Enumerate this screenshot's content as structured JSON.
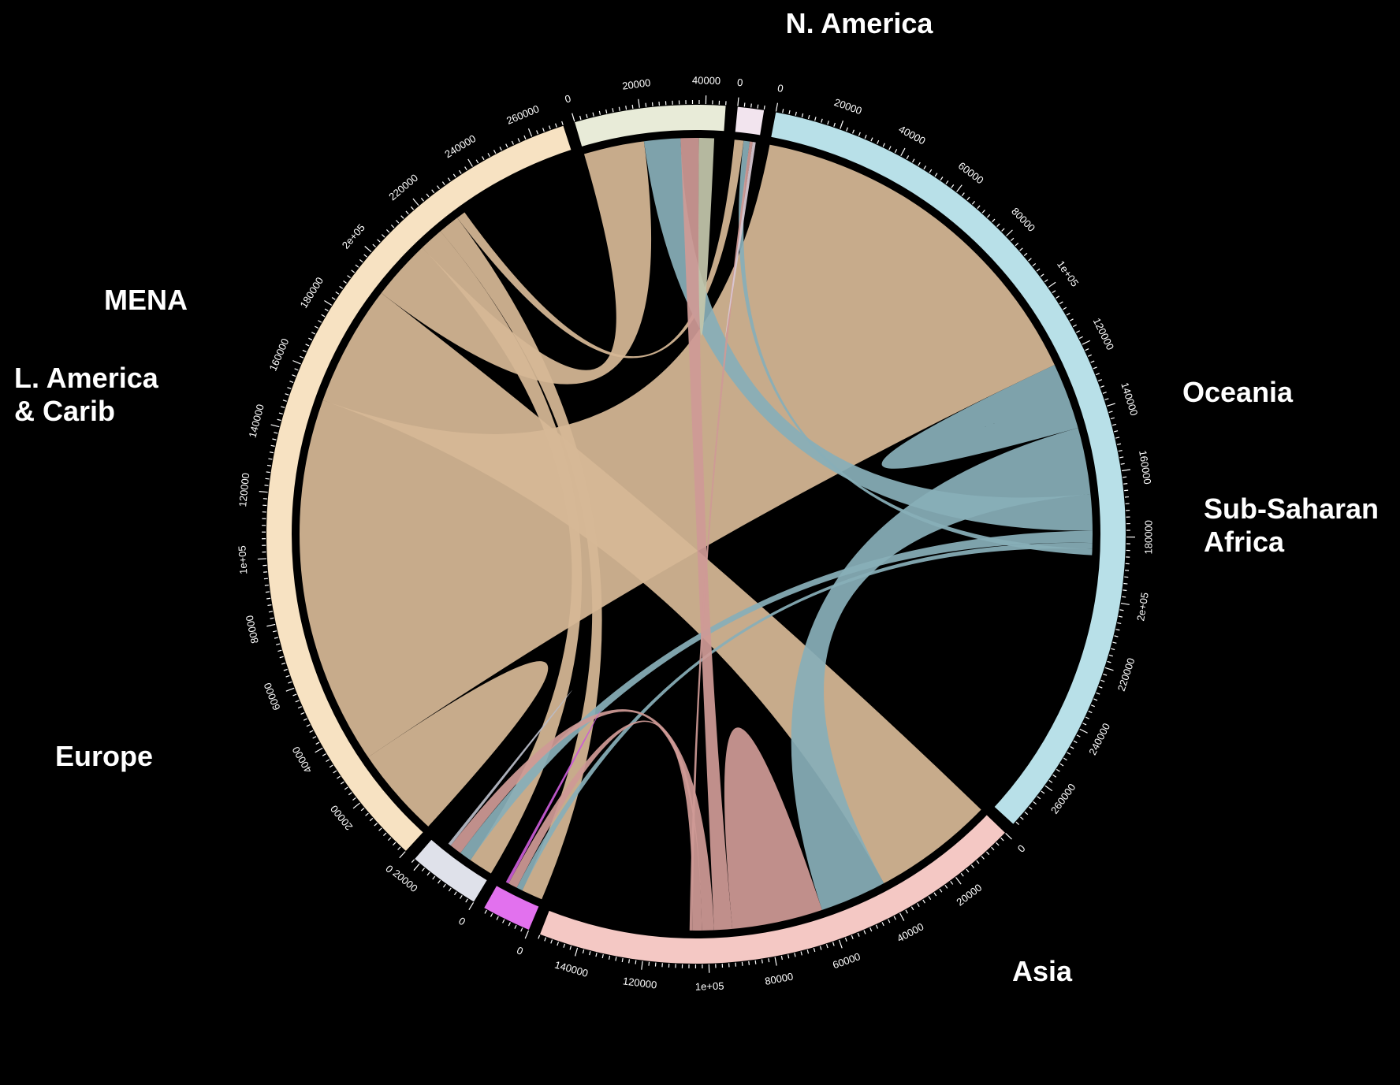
{
  "chart_data": {
    "type": "chord",
    "title": "",
    "regions": [
      {
        "name": "N. America",
        "label_lines": [
          "N. America"
        ],
        "total": 270000,
        "color": "#f7e2c2",
        "chord_color": "#d6b896",
        "ticks": [
          "0",
          "20000",
          "40000",
          "60000",
          "80000",
          "1e+05",
          "120000",
          "140000",
          "160000",
          "180000",
          "2e+05",
          "220000",
          "240000",
          "260000"
        ]
      },
      {
        "name": "Oceania",
        "label_lines": [
          "Oceania"
        ],
        "total": 46000,
        "color": "#e8ebd8",
        "chord_color": "#c3c6ab",
        "ticks": [
          "0",
          "20000",
          "40000"
        ]
      },
      {
        "name": "Sub-Saharan Africa",
        "label_lines": [
          "Sub-Saharan",
          "Africa"
        ],
        "total": 8000,
        "color": "#f2e4ee",
        "chord_color": "#d8c9d3",
        "ticks": [
          "0"
        ]
      },
      {
        "name": "Asia",
        "label_lines": [
          "Asia"
        ],
        "total": 275000,
        "color": "#b8e0e8",
        "chord_color": "#88aeb8",
        "ticks": [
          "0",
          "20000",
          "40000",
          "60000",
          "80000",
          "1e+05",
          "120000",
          "140000",
          "160000",
          "180000",
          "2e+05",
          "220000",
          "240000",
          "260000"
        ]
      },
      {
        "name": "Europe",
        "label_lines": [
          "Europe"
        ],
        "total": 152000,
        "color": "#f4c8c4",
        "chord_color": "#cf9a96",
        "ticks": [
          "0",
          "20000",
          "40000",
          "60000",
          "80000",
          "1e+05",
          "120000",
          "140000"
        ]
      },
      {
        "name": "L. America & Carib",
        "label_lines": [
          "L. America",
          "& Carib"
        ],
        "total": 15000,
        "color": "#e271ee",
        "chord_color": "#c95bd6",
        "ticks": [
          "0"
        ]
      },
      {
        "name": "MENA",
        "label_lines": [
          "MENA"
        ],
        "total": 22000,
        "color": "#dfe1ea",
        "chord_color": "#b9bcc8",
        "ticks": [
          "0",
          "20000"
        ]
      }
    ],
    "flows": [
      {
        "from": "N. America",
        "to": "N. America",
        "value": 30000
      },
      {
        "from": "N. America",
        "to": "Asia",
        "value": 122000
      },
      {
        "from": "N. America",
        "to": "Europe",
        "value": 40000
      },
      {
        "from": "N. America",
        "to": "Oceania",
        "value": 20000
      },
      {
        "from": "N. America",
        "to": "MENA",
        "value": 8000
      },
      {
        "from": "N. America",
        "to": "L. America & Carib",
        "value": 7000
      },
      {
        "from": "N. America",
        "to": "Sub-Saharan Africa",
        "value": 3000
      },
      {
        "from": "Asia",
        "to": "Asia",
        "value": 22000
      },
      {
        "from": "Asia",
        "to": "Europe",
        "value": 22000
      },
      {
        "from": "Asia",
        "to": "Oceania",
        "value": 12000
      },
      {
        "from": "Asia",
        "to": "MENA",
        "value": 4000
      },
      {
        "from": "Asia",
        "to": "L. America & Carib",
        "value": 2000
      },
      {
        "from": "Asia",
        "to": "Sub-Saharan Africa",
        "value": 2000
      },
      {
        "from": "Europe",
        "to": "Europe",
        "value": 30000
      },
      {
        "from": "Europe",
        "to": "Oceania",
        "value": 6000
      },
      {
        "from": "Europe",
        "to": "MENA",
        "value": 4000
      },
      {
        "from": "Europe",
        "to": "L. America & Carib",
        "value": 3000
      },
      {
        "from": "Europe",
        "to": "Sub-Saharan Africa",
        "value": 1000
      },
      {
        "from": "Oceania",
        "to": "Oceania",
        "value": 5000
      },
      {
        "from": "MENA",
        "to": "MENA",
        "value": 1000
      },
      {
        "from": "L. America & Carib",
        "to": "L. America & Carib",
        "value": 1000
      },
      {
        "from": "Sub-Saharan Africa",
        "to": "Sub-Saharan Africa",
        "value": 1000
      }
    ]
  }
}
